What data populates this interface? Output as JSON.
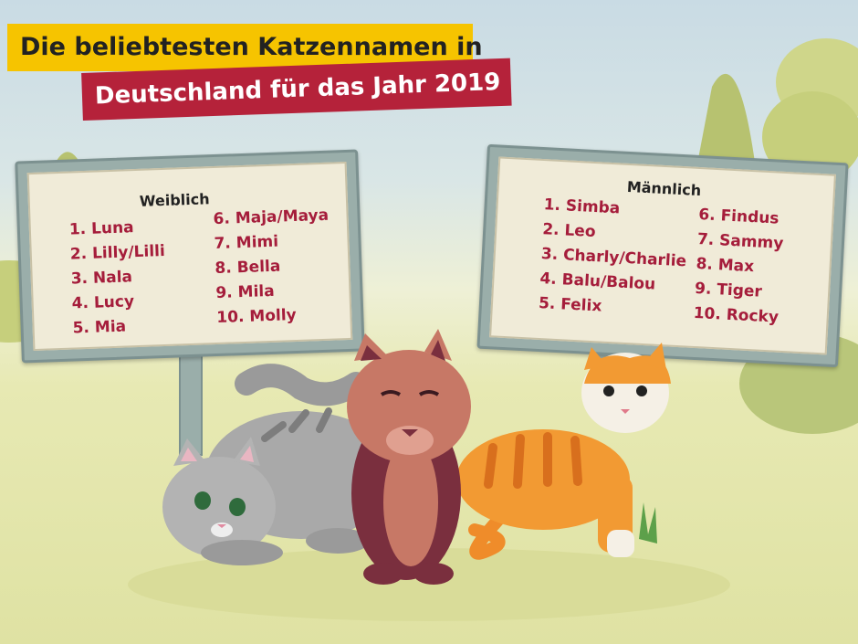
{
  "title": {
    "line1": "Die beliebtesten Katzennamen in",
    "line2": "Deutschland für das Jahr 2019"
  },
  "colors": {
    "title_bar_yellow": "#f6c400",
    "title_bar_red": "#b5223a",
    "name_text": "#a51d3b",
    "sign_board": "#f0ebd8"
  },
  "female": {
    "heading": "Weiblich",
    "names": [
      "1. Luna",
      "2. Lilly/Lilli",
      "3. Nala",
      "4. Lucy",
      "5. Mia",
      "6. Maja/Maya",
      "7. Mimi",
      "8. Bella",
      "9. Mila",
      "10. Molly"
    ]
  },
  "male": {
    "heading": "Männlich",
    "names": [
      "1. Simba",
      "2. Leo",
      "3. Charly/Charlie",
      "4. Balu/Balou",
      "5. Felix",
      "6. Findus",
      "7. Sammy",
      "8. Max",
      "9. Tiger",
      "10. Rocky"
    ]
  }
}
